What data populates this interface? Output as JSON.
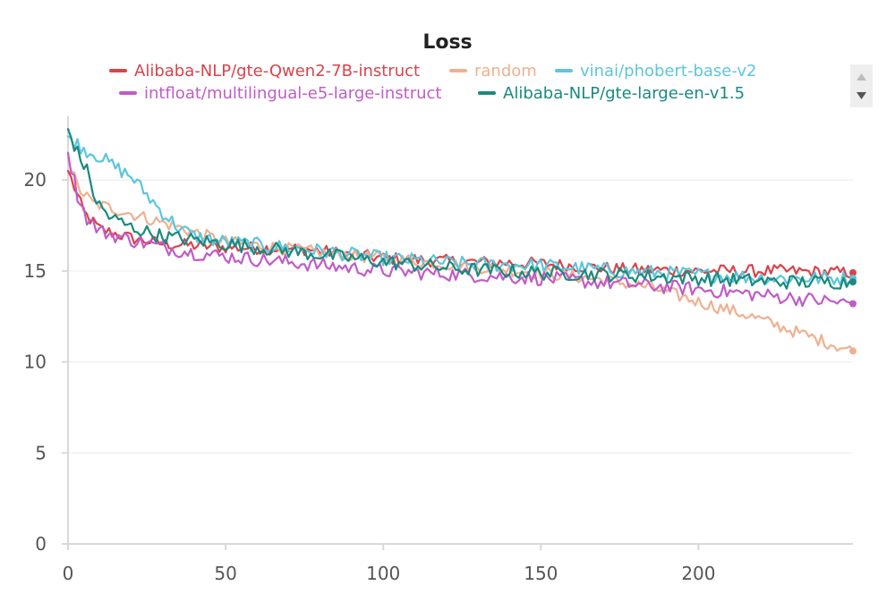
{
  "chart_data": {
    "type": "line",
    "title": "Loss",
    "xlabel": "",
    "ylabel": "",
    "xlim": [
      0,
      249
    ],
    "ylim": [
      0,
      23.5
    ],
    "x_ticks": [
      0,
      50,
      100,
      150,
      200
    ],
    "y_ticks": [
      0,
      5,
      10,
      15,
      20
    ],
    "grid": true,
    "legend_position": "top",
    "series": [
      {
        "name": "Alibaba-NLP/gte-Qwen2-7B-instruct",
        "color": "#d9434b",
        "anchors": [
          [
            0,
            20.5
          ],
          [
            2,
            19.6
          ],
          [
            5,
            18.2
          ],
          [
            10,
            17.3
          ],
          [
            20,
            16.8
          ],
          [
            30,
            16.5
          ],
          [
            50,
            16.3
          ],
          [
            75,
            16.2
          ],
          [
            100,
            15.7
          ],
          [
            125,
            15.5
          ],
          [
            150,
            15.4
          ],
          [
            175,
            15.1
          ],
          [
            200,
            15.0
          ],
          [
            225,
            15.0
          ],
          [
            249,
            14.9
          ]
        ],
        "noise": 0.35
      },
      {
        "name": "random",
        "color": "#f0b090",
        "anchors": [
          [
            0,
            21.2
          ],
          [
            3,
            19.6
          ],
          [
            8,
            18.7
          ],
          [
            15,
            18.4
          ],
          [
            25,
            17.9
          ],
          [
            35,
            17.4
          ],
          [
            50,
            16.6
          ],
          [
            75,
            16.1
          ],
          [
            100,
            15.7
          ],
          [
            125,
            15.3
          ],
          [
            150,
            14.9
          ],
          [
            170,
            14.5
          ],
          [
            185,
            14.1
          ],
          [
            200,
            13.3
          ],
          [
            215,
            12.6
          ],
          [
            230,
            11.7
          ],
          [
            249,
            10.6
          ]
        ],
        "noise": 0.35
      },
      {
        "name": "vinai/phobert-base-v2",
        "color": "#5cc6db",
        "anchors": [
          [
            0,
            22.4
          ],
          [
            5,
            21.7
          ],
          [
            10,
            21.3
          ],
          [
            15,
            20.7
          ],
          [
            20,
            20.2
          ],
          [
            25,
            19.2
          ],
          [
            30,
            18.2
          ],
          [
            35,
            17.4
          ],
          [
            40,
            16.9
          ],
          [
            50,
            16.6
          ],
          [
            75,
            16.2
          ],
          [
            100,
            15.7
          ],
          [
            125,
            15.4
          ],
          [
            150,
            15.3
          ],
          [
            175,
            15.0
          ],
          [
            200,
            14.8
          ],
          [
            225,
            14.6
          ],
          [
            249,
            14.6
          ]
        ],
        "noise": 0.4
      },
      {
        "name": "intfloat/multilingual-e5-large-instruct",
        "color": "#c05cc7",
        "anchors": [
          [
            0,
            21.5
          ],
          [
            3,
            19.2
          ],
          [
            6,
            17.9
          ],
          [
            10,
            17.2
          ],
          [
            20,
            16.7
          ],
          [
            30,
            16.3
          ],
          [
            40,
            16.0
          ],
          [
            50,
            15.8
          ],
          [
            75,
            15.4
          ],
          [
            100,
            15.0
          ],
          [
            125,
            14.8
          ],
          [
            150,
            14.6
          ],
          [
            175,
            14.3
          ],
          [
            200,
            14.0
          ],
          [
            225,
            13.6
          ],
          [
            249,
            13.2
          ]
        ],
        "noise": 0.4
      },
      {
        "name": "Alibaba-NLP/gte-large-en-v1.5",
        "color": "#1a8a7e",
        "anchors": [
          [
            0,
            22.8
          ],
          [
            3,
            21.5
          ],
          [
            6,
            20.5
          ],
          [
            9,
            18.8
          ],
          [
            13,
            18.0
          ],
          [
            20,
            17.4
          ],
          [
            30,
            16.9
          ],
          [
            50,
            16.5
          ],
          [
            75,
            16.0
          ],
          [
            100,
            15.5
          ],
          [
            125,
            15.1
          ],
          [
            150,
            14.9
          ],
          [
            175,
            14.8
          ],
          [
            200,
            14.6
          ],
          [
            225,
            14.4
          ],
          [
            249,
            14.4
          ]
        ],
        "noise": 0.4
      }
    ]
  }
}
